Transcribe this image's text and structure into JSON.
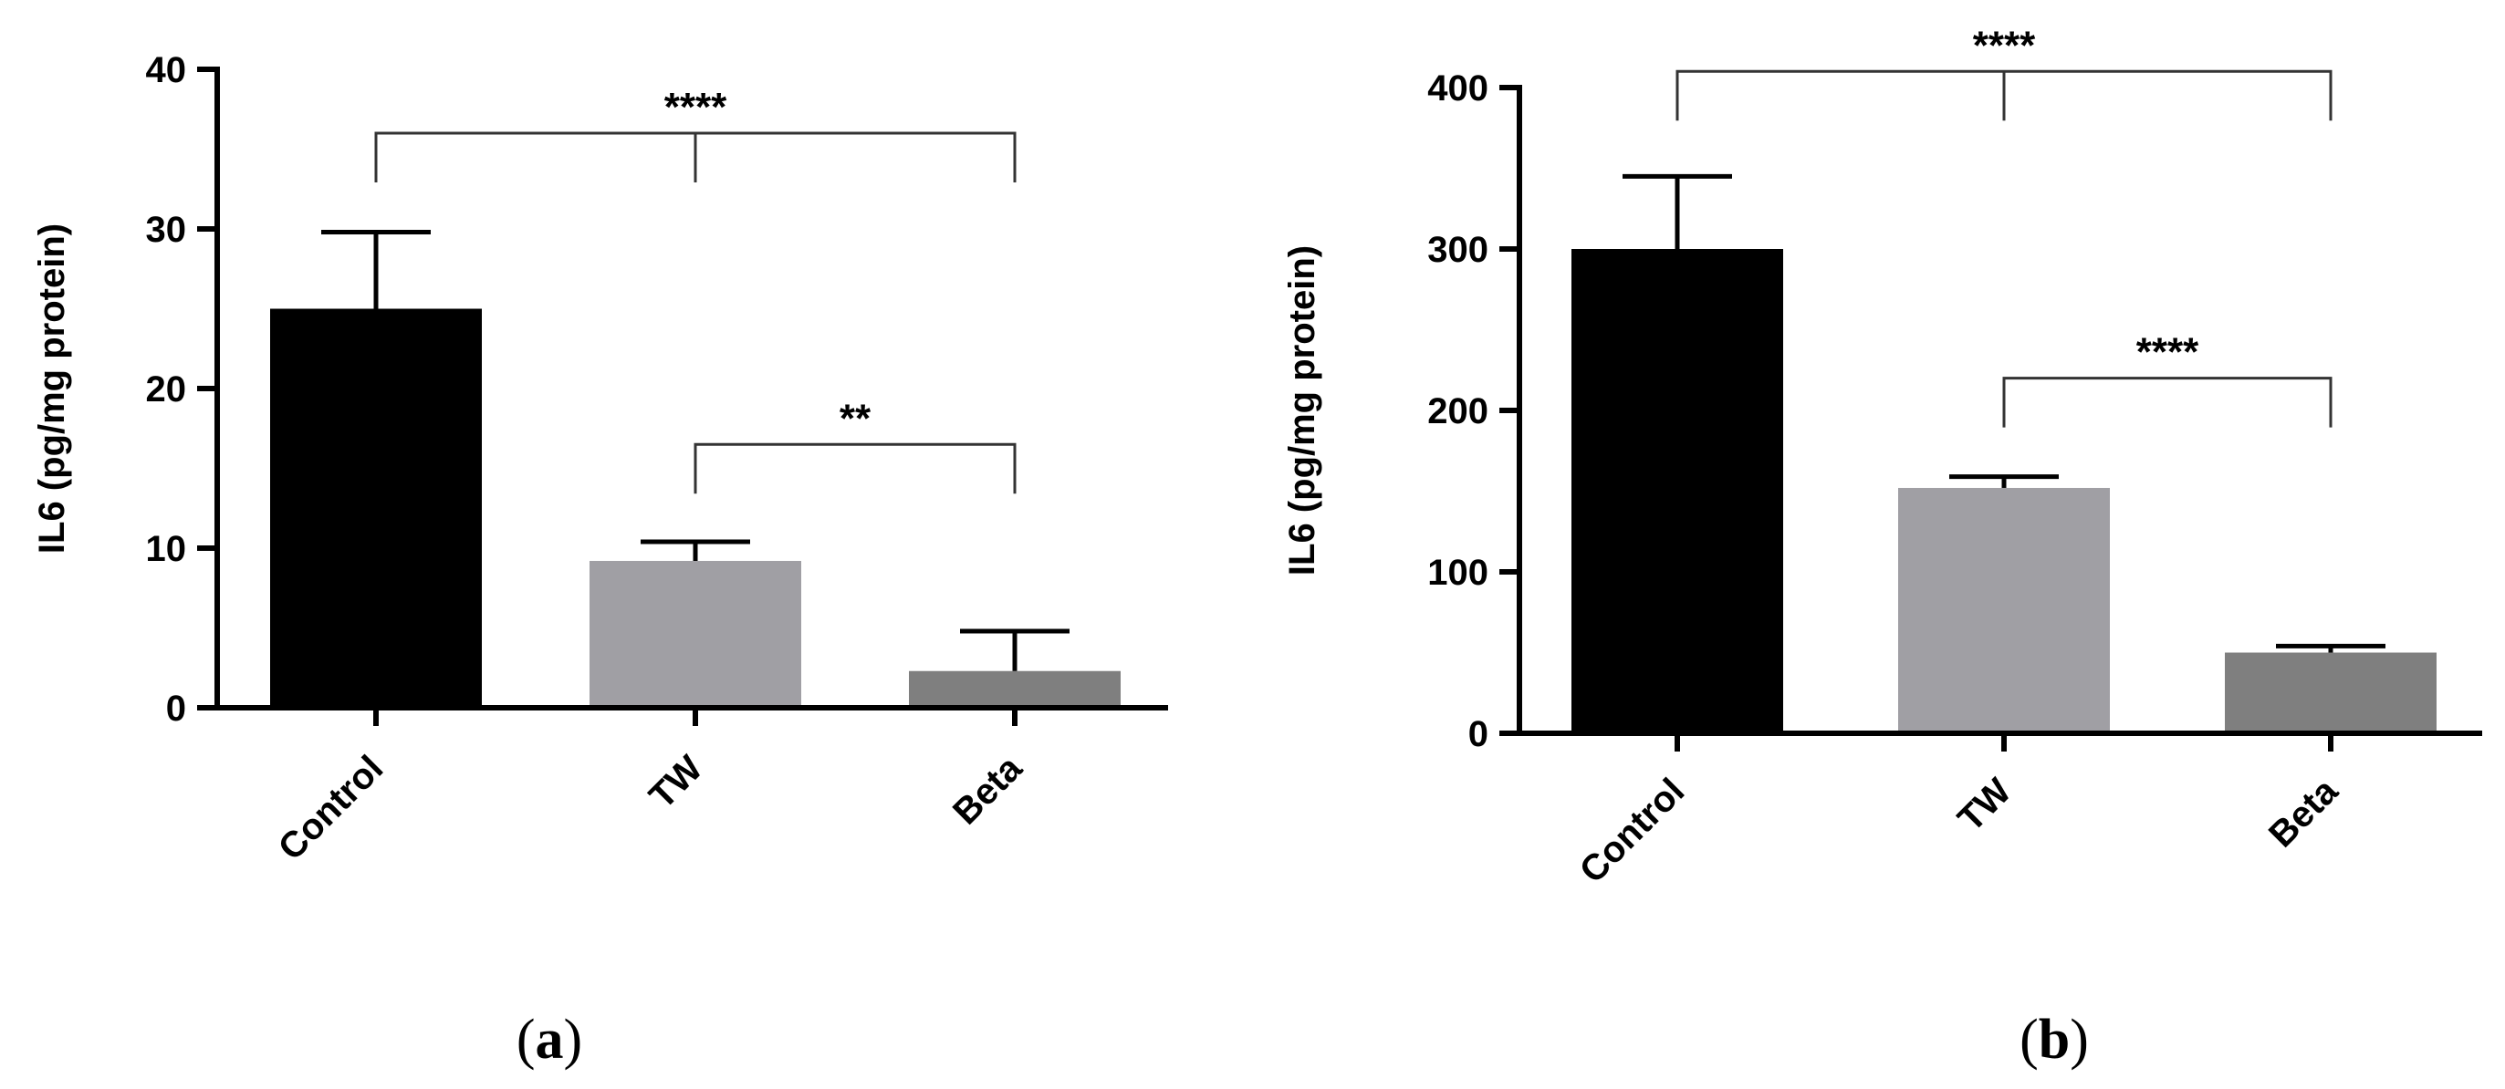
{
  "chart_data": [
    {
      "type": "bar",
      "categories": [
        "Control",
        "TW",
        "Beta"
      ],
      "values": [
        25,
        9.2,
        2.3
      ],
      "errors": [
        4.8,
        1.2,
        2.5
      ],
      "colors": [
        "#000000",
        "#a09fa4",
        "#7f7f7f"
      ],
      "ylabel": "IL6 (pg/mg protein)",
      "ylim": [
        0,
        40
      ],
      "yticks": [
        0,
        10,
        20,
        30,
        40
      ],
      "panel_label": "(a)",
      "significance": [
        {
          "label": "****",
          "groups": [
            0,
            1,
            2
          ],
          "level": 36
        },
        {
          "label": "**",
          "groups": [
            1,
            2
          ],
          "level": 16.5
        }
      ]
    },
    {
      "type": "bar",
      "categories": [
        "Control",
        "TW",
        "Beta"
      ],
      "values": [
        300,
        152,
        50
      ],
      "errors": [
        45,
        7,
        4
      ],
      "colors": [
        "#000000",
        "#a09fa4",
        "#7f7f7f"
      ],
      "ylabel": "IL6 (pg/mg protein)",
      "ylim": [
        0,
        400
      ],
      "yticks": [
        0,
        100,
        200,
        300,
        400
      ],
      "panel_label": "(b)",
      "significance": [
        {
          "label": "****",
          "groups": [
            0,
            1,
            2
          ],
          "level": 410
        },
        {
          "label": "****",
          "groups": [
            1,
            2
          ],
          "level": 220
        }
      ]
    }
  ]
}
